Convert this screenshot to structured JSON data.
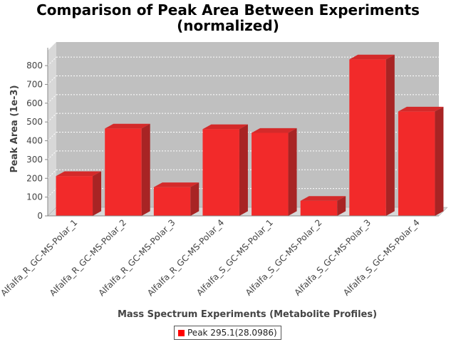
{
  "title_line_1": "Comparison of Peak Area Between Experiments",
  "title_line_2": "(normalized)",
  "colors": {
    "bar_front": "#f22a2a",
    "bar_top": "#d42a2a",
    "bar_side": "#a82424",
    "plot_bg": "#c0c0c0",
    "plot_wall": "#d8d8d8"
  },
  "chart_data": {
    "type": "bar",
    "title": "Comparison of Peak Area Between Experiments (normalized)",
    "xlabel": "Mass Spectrum Experiments (Metabolite Profiles)",
    "ylabel": "Peak Area (1e-3)",
    "ylim": [
      0,
      880
    ],
    "yticks": [
      0,
      100,
      200,
      300,
      400,
      500,
      600,
      700,
      800
    ],
    "grid": true,
    "legend_position": "bottom",
    "categories": [
      "Alfalfa_R_GC-MS-Polar_1",
      "Alfalfa_R_GC-MS-Polar_2",
      "Alfalfa_R_GC-MS-Polar_3",
      "Alfalfa_R_GC-MS-Polar_4",
      "Alfalfa_S_GC-MS-Polar_1",
      "Alfalfa_S_GC-MS-Polar_2",
      "Alfalfa_S_GC-MS-Polar_3",
      "Alfalfa_S_GC-MS-Polar_4"
    ],
    "series": [
      {
        "name": "Peak 295.1(28.0986)",
        "values": [
          212,
          465,
          153,
          462,
          442,
          80,
          833,
          556
        ]
      }
    ]
  }
}
